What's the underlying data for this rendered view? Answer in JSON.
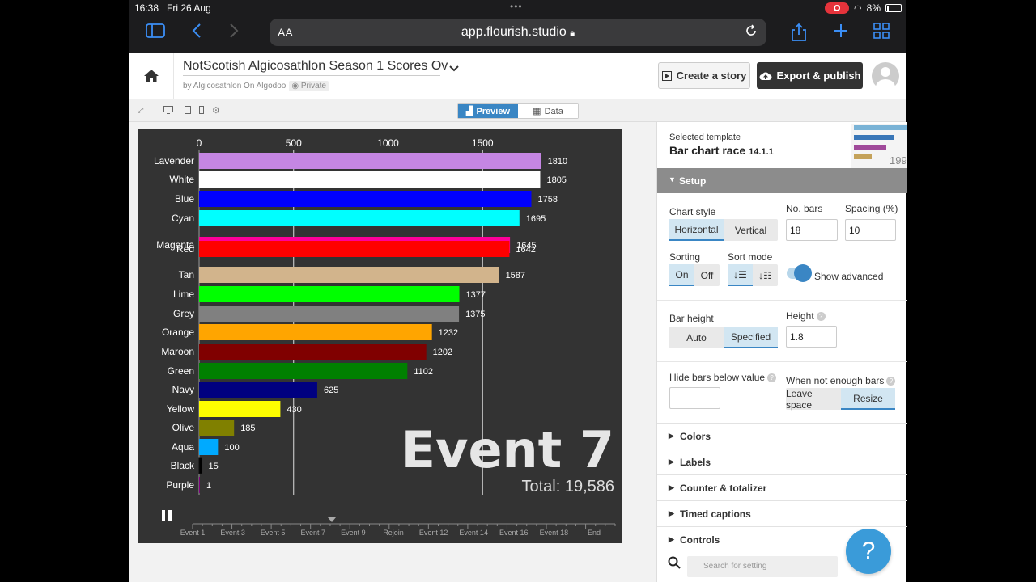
{
  "status": {
    "time": "16:38",
    "date": "Fri 26 Aug",
    "battery": "8%"
  },
  "browser": {
    "aa": "AA",
    "url": "app.flourish.studio"
  },
  "header": {
    "title": "NotScotish Algicosathlon Season 1 Scores Ov",
    "byline": "by Algicosathlon On Algodoo",
    "privacy": "Private",
    "create_story": "Create a story",
    "export": "Export & publish"
  },
  "toolbar": {
    "preview": "Preview",
    "data": "Data"
  },
  "chart_data": {
    "type": "bar",
    "orientation": "horizontal",
    "categories": [
      "Lavender",
      "White",
      "Blue",
      "Cyan",
      "Magenta",
      "Red",
      "Tan",
      "Lime",
      "Grey",
      "Orange",
      "Maroon",
      "Green",
      "Navy",
      "Yellow",
      "Olive",
      "Aqua",
      "Black",
      "Purple"
    ],
    "values": [
      1810,
      1805,
      1758,
      1695,
      1645,
      1642,
      1587,
      1377,
      1375,
      1232,
      1202,
      1102,
      625,
      430,
      185,
      100,
      15,
      1
    ],
    "colors": [
      "#c586e3",
      "#ffffff",
      "#0000ff",
      "#00ffff",
      "#ff0099",
      "#ff0000",
      "#d2b48c",
      "#00ff00",
      "#808080",
      "#ffa500",
      "#800000",
      "#008000",
      "#000080",
      "#ffff00",
      "#808000",
      "#00aaff",
      "#000000",
      "#800080"
    ],
    "xticks": [
      0,
      500,
      1000,
      1500
    ],
    "xlim": [
      0,
      1810
    ],
    "grid": true,
    "event_label": "Event 7",
    "total_label": "Total: 19,586",
    "timeline_labels": [
      "Event 1",
      "Event 3",
      "Event 5",
      "Event 7",
      "Event 9",
      "Rejoin",
      "Event 12",
      "Event 14",
      "Event 16",
      "Event 18",
      "End"
    ]
  },
  "panel": {
    "selected_label": "Selected template",
    "template_name": "Bar chart race",
    "template_version": "14.1.1",
    "thumb_number": "199",
    "setup": "Setup",
    "chart_style_label": "Chart style",
    "horizontal": "Horizontal",
    "vertical": "Vertical",
    "no_bars_label": "No. bars",
    "no_bars_value": "18",
    "spacing_label": "Spacing (%)",
    "spacing_value": "10",
    "sorting_label": "Sorting",
    "sort_on": "On",
    "sort_off": "Off",
    "sort_mode_label": "Sort mode",
    "show_advanced": "Show advanced",
    "bar_height_label": "Bar height",
    "auto": "Auto",
    "specified": "Specified",
    "height_label": "Height",
    "height_value": "1.8",
    "hide_bars_label": "Hide bars below value",
    "not_enough_label": "When not enough bars",
    "leave_space": "Leave space",
    "resize": "Resize",
    "sections": [
      "Colors",
      "Labels",
      "Counter & totalizer",
      "Timed captions",
      "Controls"
    ],
    "search_placeholder": "Search for setting"
  }
}
